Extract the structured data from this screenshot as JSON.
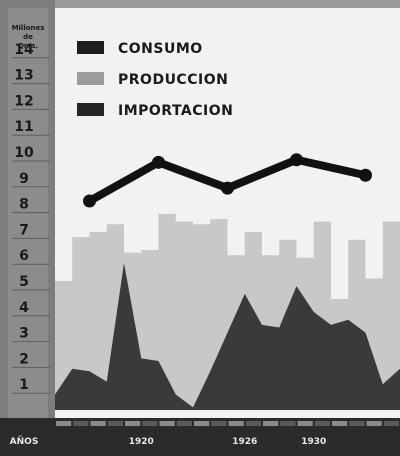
{
  "chart_data": {
    "type": "area",
    "y_axis_title": [
      "Millones",
      "de",
      "Qms."
    ],
    "x_axis_title": "AÑOS",
    "yticks": [
      1,
      2,
      3,
      4,
      5,
      6,
      7,
      8,
      9,
      10,
      11,
      12,
      13,
      14
    ],
    "ylim": [
      0,
      15
    ],
    "xlim": [
      1915,
      1935
    ],
    "xtick_labels": [
      {
        "year": 1920,
        "label": "1920"
      },
      {
        "year": 1926,
        "label": "1926"
      },
      {
        "year": 1930,
        "label": "1930"
      }
    ],
    "legend": [
      {
        "label": "CONSUMO",
        "color": "#1e1e1e"
      },
      {
        "label": "PRODUCCION",
        "color": "#9c9c9c"
      },
      {
        "label": "IMPORTACION",
        "color": "#262626"
      }
    ],
    "legend_position": "top-left",
    "colors": {
      "page": "#9a9a9a",
      "plot_background": "#f2f2f2",
      "axis_band": "#7d7d7d",
      "produccion": "#c8c8c8",
      "importacion": "#3a3a3a",
      "consumo": "#111111",
      "bottom_band": "#2b2b2b"
    },
    "series": [
      {
        "name": "CONSUMO",
        "style": "line-markers",
        "x": [
          1917,
          1921,
          1925,
          1929,
          1933
        ],
        "values": [
          8.1,
          9.6,
          8.6,
          9.7,
          9.1
        ]
      },
      {
        "name": "PRODUCCION",
        "style": "step-area",
        "x": [
          1915,
          1916,
          1917,
          1918,
          1919,
          1920,
          1921,
          1922,
          1923,
          1924,
          1925,
          1926,
          1927,
          1928,
          1929,
          1930,
          1931,
          1932,
          1933,
          1934,
          1935
        ],
        "values": [
          5.0,
          6.7,
          6.9,
          7.2,
          6.1,
          6.2,
          7.6,
          7.3,
          7.2,
          7.4,
          6.0,
          6.9,
          6.0,
          6.6,
          5.9,
          7.3,
          4.3,
          6.6,
          5.1,
          7.3,
          6.8
        ]
      },
      {
        "name": "IMPORTACION",
        "style": "area",
        "x": [
          1915,
          1916,
          1917,
          1918,
          1919,
          1920,
          1921,
          1922,
          1923,
          1924,
          1925,
          1926,
          1927,
          1928,
          1929,
          1930,
          1931,
          1932,
          1933,
          1934,
          1935
        ],
        "values": [
          0.6,
          1.6,
          1.5,
          1.1,
          5.7,
          2.0,
          1.9,
          0.6,
          0.1,
          1.5,
          3.0,
          4.5,
          3.3,
          3.2,
          4.8,
          3.8,
          3.3,
          3.5,
          3.0,
          1.0,
          1.6
        ]
      }
    ]
  }
}
